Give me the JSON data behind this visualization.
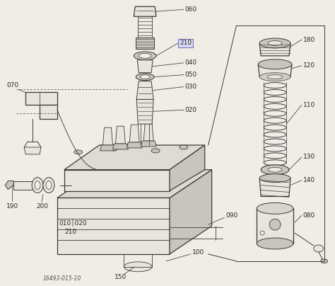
{
  "bg_color": "#f0ede6",
  "line_color": "#3a3a3a",
  "label_color": "#2a2a2a",
  "fig_width": 4.74,
  "fig_height": 4.04,
  "dpi": 100,
  "title_text": "16493-015-10"
}
